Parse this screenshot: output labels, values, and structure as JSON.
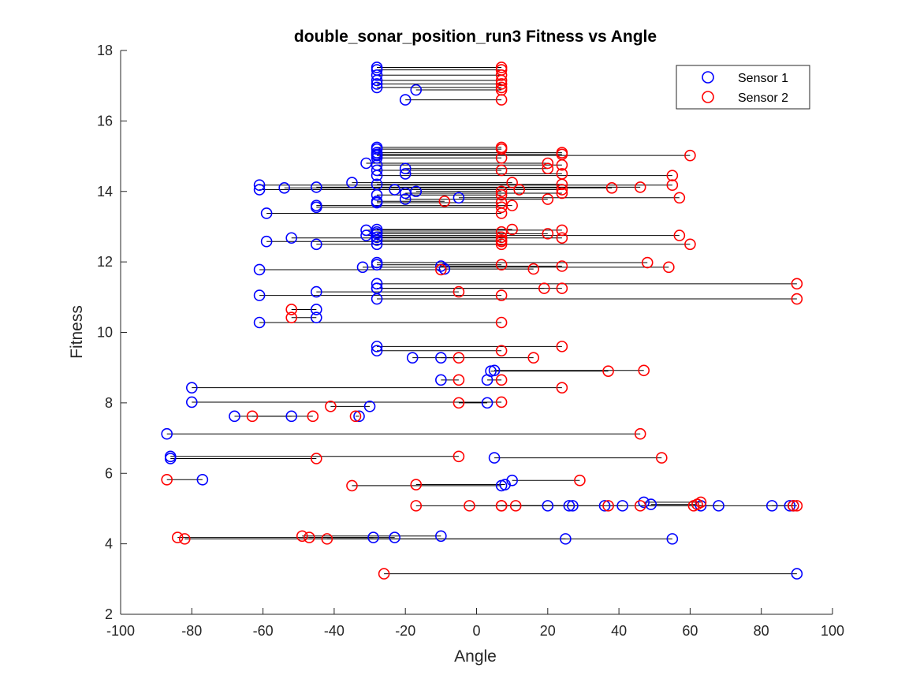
{
  "chart_data": {
    "type": "scatter",
    "title": "double_sonar_position_run3 Fitness vs Angle",
    "xlabel": "Angle",
    "ylabel": "Fitness",
    "xlim": [
      -100,
      100
    ],
    "ylim": [
      2,
      18
    ],
    "xticks": [
      "-100",
      "-80",
      "-60",
      "-40",
      "-20",
      "0",
      "20",
      "40",
      "60",
      "80",
      "100"
    ],
    "yticks": [
      "2",
      "4",
      "6",
      "8",
      "10",
      "12",
      "14",
      "16",
      "18"
    ],
    "grid": false,
    "legend_position": "top-right",
    "series": [
      {
        "name": "Sensor 1",
        "color": "#0000ff",
        "marker": "circle"
      },
      {
        "name": "Sensor 2",
        "color": "#ff0000",
        "marker": "circle"
      }
    ],
    "connectors": "each individual's Sensor 1 and Sensor 2 angles are joined by a black line at the same fitness",
    "pairs": [
      [
        -28,
        7,
        17.52
      ],
      [
        -28,
        7,
        17.45
      ],
      [
        -28,
        7,
        17.3
      ],
      [
        -28,
        7,
        17.15
      ],
      [
        -28,
        7,
        17.05
      ],
      [
        -28,
        7,
        16.95
      ],
      [
        -17,
        7,
        16.88
      ],
      [
        -20,
        7,
        16.6
      ],
      [
        -28,
        7,
        15.25
      ],
      [
        -28,
        7,
        15.2
      ],
      [
        -28,
        24,
        15.1
      ],
      [
        -28,
        24,
        15.05
      ],
      [
        -28,
        60,
        15.02
      ],
      [
        -28,
        7,
        14.95
      ],
      [
        -31,
        20,
        14.8
      ],
      [
        -28,
        24,
        14.75
      ],
      [
        -20,
        20,
        14.65
      ],
      [
        -28,
        7,
        14.6
      ],
      [
        -20,
        24,
        14.5
      ],
      [
        -28,
        55,
        14.45
      ],
      [
        -35,
        10,
        14.25
      ],
      [
        -28,
        24,
        14.2
      ],
      [
        -61,
        55,
        14.18
      ],
      [
        -45,
        46,
        14.12
      ],
      [
        -54,
        38,
        14.1
      ],
      [
        -61,
        24,
        14.05
      ],
      [
        -23,
        12,
        14.05
      ],
      [
        -17,
        7,
        14.0
      ],
      [
        -20,
        24,
        13.95
      ],
      [
        -28,
        7,
        13.9
      ],
      [
        -5,
        57,
        13.82
      ],
      [
        -20,
        20,
        13.78
      ],
      [
        -28,
        -9,
        13.72
      ],
      [
        -28,
        7,
        13.68
      ],
      [
        -45,
        10,
        13.6
      ],
      [
        -45,
        7,
        13.55
      ],
      [
        -59,
        7,
        13.38
      ],
      [
        -31,
        24,
        12.9
      ],
      [
        -28,
        7,
        12.85
      ],
      [
        -28,
        10,
        12.92
      ],
      [
        -28,
        20,
        12.8
      ],
      [
        -31,
        57,
        12.75
      ],
      [
        -28,
        7,
        12.7
      ],
      [
        -52,
        24,
        12.68
      ],
      [
        -28,
        7,
        12.62
      ],
      [
        -59,
        7,
        12.58
      ],
      [
        -28,
        60,
        12.5
      ],
      [
        -45,
        7,
        12.5
      ],
      [
        -28,
        48,
        11.98
      ],
      [
        -28,
        7,
        11.92
      ],
      [
        -10,
        24,
        11.88
      ],
      [
        -32,
        54,
        11.85
      ],
      [
        -9,
        16,
        11.8
      ],
      [
        -61,
        -10,
        11.78
      ],
      [
        -28,
        90,
        11.38
      ],
      [
        -28,
        24,
        11.25
      ],
      [
        -28,
        19,
        11.25
      ],
      [
        -45,
        -5,
        11.15
      ],
      [
        -61,
        7,
        11.05
      ],
      [
        -28,
        90,
        10.95
      ],
      [
        -45,
        -52,
        10.65
      ],
      [
        -45,
        -52,
        10.42
      ],
      [
        -61,
        7,
        10.28
      ],
      [
        -28,
        24,
        9.6
      ],
      [
        -28,
        7,
        9.48
      ],
      [
        -18,
        16,
        9.28
      ],
      [
        -10,
        -5,
        9.28
      ],
      [
        5,
        47,
        8.92
      ],
      [
        4,
        37,
        8.9
      ],
      [
        -10,
        -5,
        8.65
      ],
      [
        3,
        7,
        8.65
      ],
      [
        -80,
        24,
        8.43
      ],
      [
        -80,
        7,
        8.02
      ],
      [
        3,
        -5,
        8.0
      ],
      [
        -30,
        -41,
        7.9
      ],
      [
        -68,
        -46,
        7.62
      ],
      [
        -52,
        -63,
        7.62
      ],
      [
        -33,
        -34,
        7.62
      ],
      [
        -87,
        46,
        7.12
      ],
      [
        -86,
        -5,
        6.48
      ],
      [
        -86,
        -45,
        6.42
      ],
      [
        5,
        52,
        6.44
      ],
      [
        -77,
        -87,
        5.82
      ],
      [
        10,
        29,
        5.8
      ],
      [
        8,
        -17,
        5.68
      ],
      [
        7,
        -35,
        5.65
      ],
      [
        47,
        63,
        5.18
      ],
      [
        49,
        62,
        5.12
      ],
      [
        20,
        -17,
        5.08
      ],
      [
        26,
        -2,
        5.08
      ],
      [
        27,
        7,
        5.08
      ],
      [
        36,
        11,
        5.08
      ],
      [
        41,
        37,
        5.08
      ],
      [
        63,
        46,
        5.08
      ],
      [
        68,
        61,
        5.08
      ],
      [
        83,
        89,
        5.08
      ],
      [
        88,
        90,
        5.08
      ],
      [
        89,
        7,
        5.08
      ],
      [
        -10,
        -49,
        4.22
      ],
      [
        -29,
        -84,
        4.18
      ],
      [
        -23,
        -47,
        4.18
      ],
      [
        25,
        -82,
        4.14
      ],
      [
        55,
        -42,
        4.14
      ],
      [
        90,
        -26,
        3.15
      ]
    ]
  }
}
